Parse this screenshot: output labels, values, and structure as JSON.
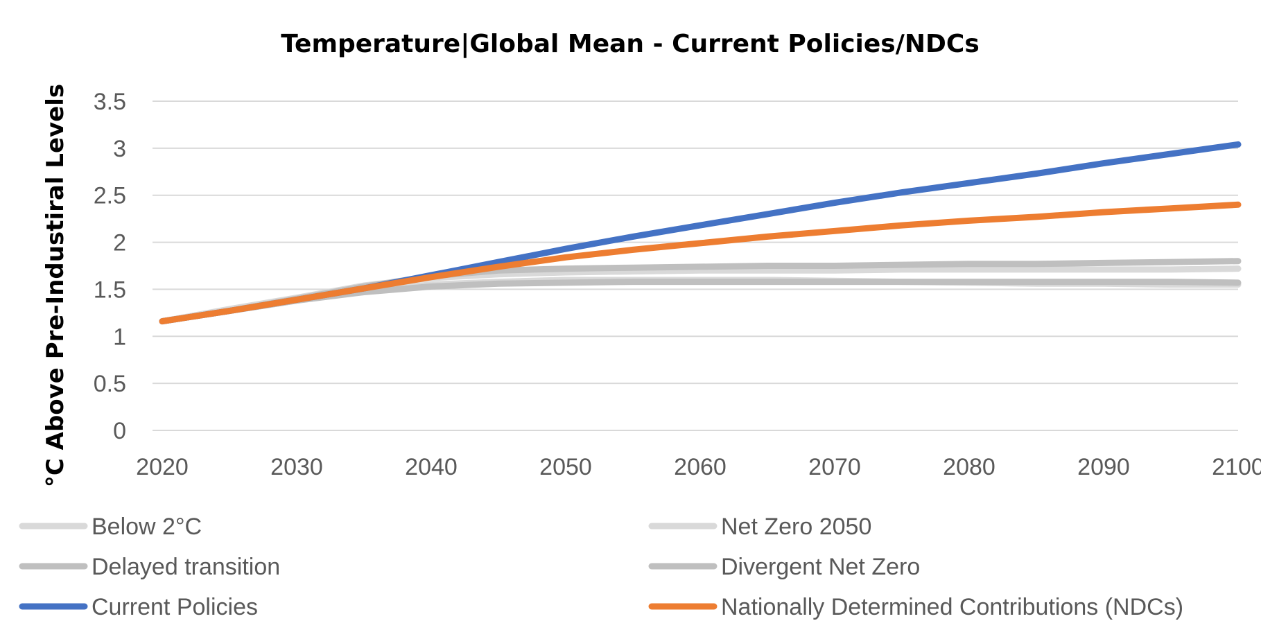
{
  "chart_data": {
    "type": "line",
    "title": "Temperature|Global Mean - Current Policies/NDCs",
    "xlabel": "",
    "ylabel": "°C Above Pre-Industiral Levels",
    "x_ticks": [
      "2020",
      "2030",
      "2040",
      "2050",
      "2060",
      "2070",
      "2080",
      "2090",
      "2100"
    ],
    "y_ticks": [
      "0",
      "0.5",
      "1",
      "1.5",
      "2",
      "2.5",
      "3",
      "3.5"
    ],
    "xlim": [
      2020,
      2100
    ],
    "ylim": [
      0,
      3.5
    ],
    "grid": true,
    "legend_position": "bottom",
    "x": [
      2020,
      2025,
      2030,
      2035,
      2040,
      2045,
      2050,
      2055,
      2060,
      2065,
      2070,
      2075,
      2080,
      2085,
      2090,
      2095,
      2100
    ],
    "series": [
      {
        "name": "Below 2°C",
        "color": "#d9d9d9",
        "values": [
          1.16,
          1.27,
          1.38,
          1.48,
          1.55,
          1.58,
          1.6,
          1.6,
          1.6,
          1.6,
          1.59,
          1.58,
          1.57,
          1.56,
          1.56,
          1.55,
          1.55
        ]
      },
      {
        "name": "Net Zero 2050",
        "color": "#d9d9d9",
        "values": [
          1.16,
          1.29,
          1.41,
          1.54,
          1.62,
          1.66,
          1.68,
          1.69,
          1.7,
          1.7,
          1.7,
          1.71,
          1.71,
          1.71,
          1.71,
          1.71,
          1.72
        ]
      },
      {
        "name": "Delayed transition",
        "color": "#bfbfbf",
        "values": [
          1.16,
          1.27,
          1.4,
          1.53,
          1.64,
          1.7,
          1.72,
          1.73,
          1.74,
          1.75,
          1.75,
          1.76,
          1.77,
          1.77,
          1.78,
          1.79,
          1.8
        ]
      },
      {
        "name": "Divergent Net Zero",
        "color": "#bfbfbf",
        "values": [
          1.16,
          1.27,
          1.38,
          1.47,
          1.53,
          1.56,
          1.57,
          1.58,
          1.58,
          1.58,
          1.58,
          1.58,
          1.58,
          1.58,
          1.58,
          1.58,
          1.57
        ]
      },
      {
        "name": "Current Policies",
        "color": "#4472c4",
        "values": [
          1.16,
          1.27,
          1.39,
          1.51,
          1.65,
          1.79,
          1.93,
          2.06,
          2.18,
          2.3,
          2.42,
          2.53,
          2.63,
          2.73,
          2.84,
          2.94,
          3.04
        ]
      },
      {
        "name": "Nationally Determined Contributions (NDCs)",
        "color": "#ed7d31",
        "values": [
          1.16,
          1.27,
          1.39,
          1.51,
          1.63,
          1.74,
          1.84,
          1.92,
          1.99,
          2.06,
          2.12,
          2.18,
          2.23,
          2.27,
          2.32,
          2.36,
          2.4
        ]
      }
    ]
  }
}
